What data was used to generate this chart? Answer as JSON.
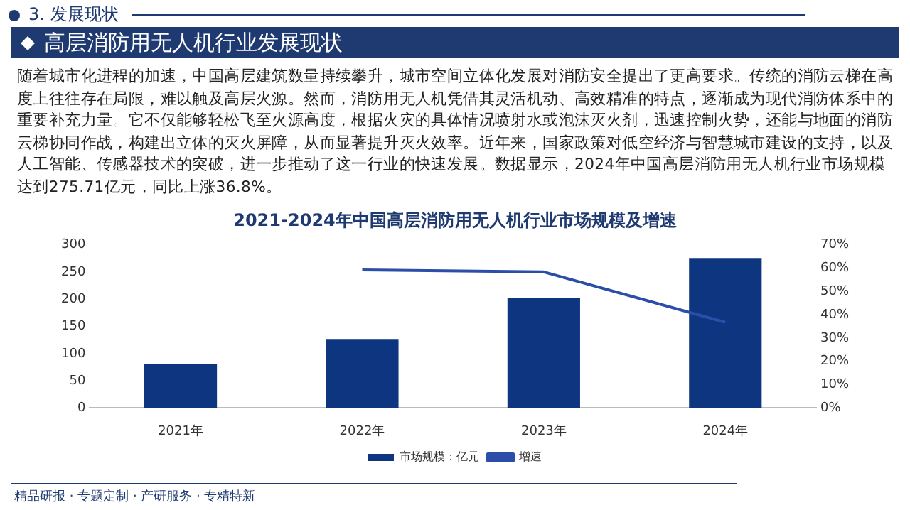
{
  "chart_data": {
    "type": "bar",
    "title": "2021-2024年中国高层消防用无人机行业市场规模及增速",
    "annotations": [
      "3. 发展现状",
      "高层消防用无人机行业发展现状",
      "随着城市化进程的加速，中国高层建筑数量持续攀升，城市空间立体化发展对消防安全提出了更高要求。传统的消防云梯在高度上往往存在局限，难以触及高层火源。然而，消防用无人机凭借其灵活机动、高效精准的特点，逐渐成为现代消防体系中的重要补充力量。它不仅能够轻松飞至火源高度，根据火灾的具体情况喷射水或泡沫灭火剂，迅速控制火势，还能与地面的消防云梯协同作战，构建出立体的灭火屏障，从而显著提升灭火效率。近年来，国家政策对低空经济与智慧城市建设的支持，以及人工智能、传感器技术的突破，进一步推动了这一行业的快速发展。数据显示，2024年中国高层消防用无人机行业市场规模达到275.71亿元，同比上涨36.8%。",
      "精品研报 · 专题定制 · 产研服务 · 专精特新"
    ],
    "categories": [
      "2021年",
      "2022年",
      "2023年",
      "2024年"
    ],
    "series": [
      {
        "name": "市场规模：亿元",
        "color": "#0d3580",
        "values": [
          81,
          127,
          202,
          276
        ]
      },
      {
        "name": "增速",
        "type": "line",
        "axis": "y2",
        "color": "#2b4fa8",
        "values": [
          null,
          59.3,
          58.4,
          36.8
        ]
      }
    ],
    "ylim": [
      0,
      300
    ],
    "yticks": [
      0,
      50,
      100,
      150,
      200,
      250,
      300
    ],
    "y2lim": [
      0,
      70
    ],
    "y2ticks": [
      {
        "value": 0,
        "label": "0%"
      },
      {
        "value": 10,
        "label": "10%"
      },
      {
        "value": 20,
        "label": "20%"
      },
      {
        "value": 30,
        "label": "30%"
      },
      {
        "value": 40,
        "label": "40%"
      },
      {
        "value": 50,
        "label": "50%"
      },
      {
        "value": 60,
        "label": "60%"
      },
      {
        "value": 70,
        "label": "70%"
      }
    ],
    "grid": false,
    "legend": "bottom",
    "marker": "none"
  }
}
